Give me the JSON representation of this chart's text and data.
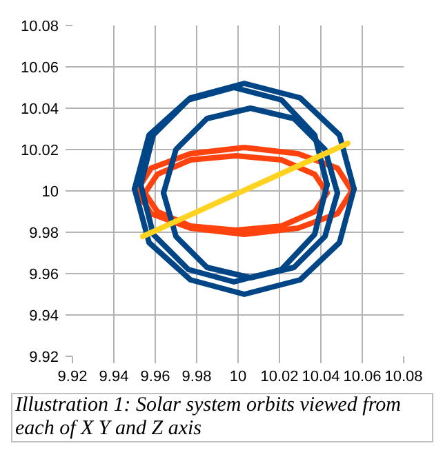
{
  "chart_data": {
    "type": "line",
    "xlim": [
      9.92,
      10.08
    ],
    "ylim": [
      9.92,
      10.08
    ],
    "xticks": [
      9.92,
      9.94,
      9.96,
      9.98,
      10,
      10.02,
      10.04,
      10.06,
      10.08
    ],
    "yticks": [
      9.92,
      9.94,
      9.96,
      9.98,
      10,
      10.02,
      10.04,
      10.06,
      10.08
    ],
    "grid": true,
    "marker": "none",
    "line_style": "solid",
    "annotations": [
      "Illustration 1: Solar system orbits viewed from each of X Y and Z axis"
    ],
    "series": [
      {
        "color": "#ff420e",
        "x": [
          9.951,
          9.958,
          9.977,
          10.003,
          10.029,
          10.048,
          10.055
        ],
        "values": [
          10.0,
          10.011,
          10.018,
          10.021,
          10.018,
          10.011,
          10.0
        ]
      },
      {
        "color": "#ff420e",
        "x": [
          9.951,
          9.958,
          9.977,
          10.003,
          10.029,
          10.048,
          10.055
        ],
        "values": [
          10.0,
          9.989,
          9.982,
          9.979,
          9.982,
          9.989,
          10.0
        ]
      },
      {
        "color": "#ff420e",
        "x": [
          9.955,
          9.961,
          9.977,
          9.999,
          10.021,
          10.037,
          10.043
        ],
        "values": [
          9.999,
          10.008,
          10.015,
          10.017,
          10.015,
          10.008,
          9.999
        ]
      },
      {
        "color": "#ff420e",
        "x": [
          9.955,
          9.961,
          9.977,
          9.999,
          10.021,
          10.037,
          10.043
        ],
        "values": [
          9.999,
          9.99,
          9.983,
          9.981,
          9.983,
          9.99,
          9.999
        ]
      },
      {
        "color": "#004586",
        "x": [
          9.95,
          9.957,
          9.977,
          10.003,
          10.03,
          10.049,
          10.056
        ],
        "values": [
          10.001,
          10.027,
          10.045,
          10.052,
          10.045,
          10.027,
          10.001
        ]
      },
      {
        "color": "#004586",
        "x": [
          9.95,
          9.957,
          9.977,
          10.003,
          10.03,
          10.049,
          10.056
        ],
        "values": [
          10.001,
          9.975,
          9.957,
          9.95,
          9.957,
          9.975,
          10.001
        ]
      },
      {
        "color": "#004586",
        "x": [
          9.953,
          9.959,
          9.976,
          9.998,
          10.021,
          10.037,
          10.043
        ],
        "values": [
          10.003,
          10.027,
          10.044,
          10.05,
          10.044,
          10.027,
          10.003
        ]
      },
      {
        "color": "#004586",
        "x": [
          9.953,
          9.959,
          9.976,
          9.998,
          10.021,
          10.037,
          10.043
        ],
        "values": [
          10.003,
          9.979,
          9.962,
          9.956,
          9.962,
          9.979,
          10.003
        ]
      },
      {
        "color": "#004586",
        "x": [
          9.964,
          9.97,
          9.985,
          10.006,
          10.027,
          10.042,
          10.048
        ],
        "values": [
          9.999,
          10.02,
          10.035,
          10.04,
          10.035,
          10.02,
          9.999
        ]
      },
      {
        "color": "#004586",
        "x": [
          9.964,
          9.97,
          9.985,
          10.006,
          10.027,
          10.042,
          10.048
        ],
        "values": [
          9.999,
          9.978,
          9.963,
          9.958,
          9.963,
          9.978,
          9.999
        ]
      },
      {
        "color": "#ffd320",
        "x": [
          9.954,
          10.053
        ],
        "values": [
          9.978,
          10.023
        ]
      }
    ]
  }
}
